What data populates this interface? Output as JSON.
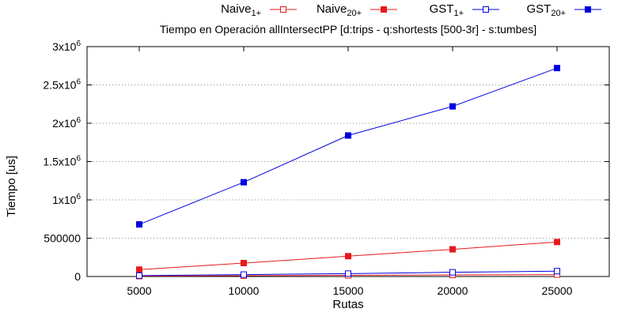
{
  "chart_data": {
    "type": "line",
    "title": "Tiempo en Operación allIntersectPP [d:trips - q:shortests [500-3r] - s:tumbes]",
    "xlabel": "Rutas",
    "ylabel": "Tiempo [us]",
    "x": [
      5000,
      10000,
      15000,
      20000,
      25000
    ],
    "x_ticks": [
      "5000",
      "10000",
      "15000",
      "20000",
      "25000"
    ],
    "xlim": [
      2500,
      27500
    ],
    "ylim": [
      0,
      3000000
    ],
    "y_ticks": [
      {
        "value": 0,
        "base": "0",
        "exp": ""
      },
      {
        "value": 500000,
        "base": "500000",
        "exp": ""
      },
      {
        "value": 1000000,
        "base": "1x10",
        "exp": "6"
      },
      {
        "value": 1500000,
        "base": "1.5x10",
        "exp": "6"
      },
      {
        "value": 2000000,
        "base": "2x10",
        "exp": "6"
      },
      {
        "value": 2500000,
        "base": "2.5x10",
        "exp": "6"
      },
      {
        "value": 3000000,
        "base": "3x10",
        "exp": "6"
      }
    ],
    "grid": "horizontal-dotted",
    "legend_position": "top",
    "series": [
      {
        "name": "Naive",
        "sub": "1+",
        "color": "#e41a1c",
        "marker": "open-square",
        "values": [
          5000,
          10000,
          15000,
          20000,
          25000
        ]
      },
      {
        "name": "Naive",
        "sub": "20+",
        "color": "#e41a1c",
        "marker": "filled-square",
        "values": [
          90000,
          175000,
          265000,
          355000,
          450000
        ]
      },
      {
        "name": "GST",
        "sub": "1+",
        "color": "#0000e0",
        "marker": "open-square",
        "values": [
          12000,
          25000,
          38000,
          55000,
          70000
        ]
      },
      {
        "name": "GST",
        "sub": "20+",
        "color": "#0000e0",
        "marker": "filled-square",
        "values": [
          680000,
          1230000,
          1840000,
          2220000,
          2720000
        ]
      }
    ]
  }
}
